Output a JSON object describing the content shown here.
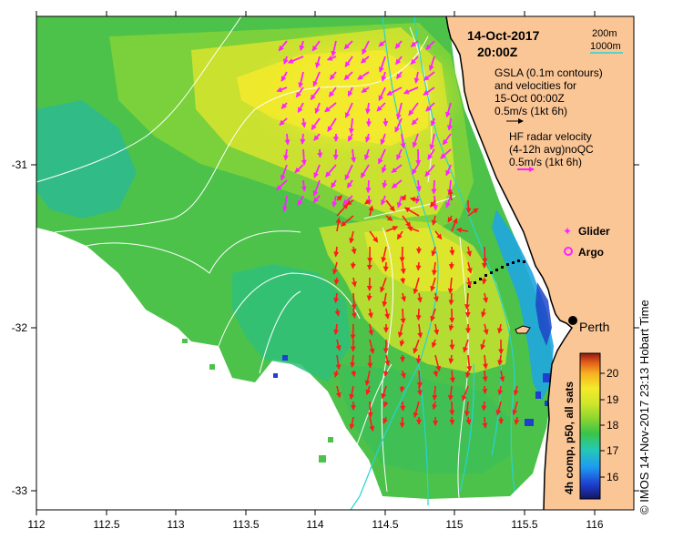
{
  "map": {
    "date": "14-Oct-2017",
    "time": "20:00Z",
    "legend_contours": {
      "line1": "200m",
      "line2": "1000m"
    },
    "legend_gsla": {
      "line1": "GSLA (0.1m contours)",
      "line2": "and velocities for",
      "line3": "15-Oct 00:00Z",
      "scale": "0.5m/s (1kt 6h)"
    },
    "legend_radar": {
      "line1": "HF radar velocity",
      "line2": "(4-12h avg)noQC",
      "line3": "0.5m/s (1kt 6h)"
    },
    "markers": {
      "glider": "Glider",
      "argo": "Argo"
    },
    "city": "Perth",
    "colorbar": {
      "title": "4h comp, p50, all sats",
      "ticks": [
        "16",
        "17",
        "18",
        "19",
        "20"
      ],
      "min": 15.5,
      "max": 20.5
    },
    "credit": "© IMOS 14-Nov-2017 23:13 Hobart Time",
    "x_ticks": [
      "112",
      "112.5",
      "113",
      "113.5",
      "114",
      "114.5",
      "115",
      "115.5",
      "116"
    ],
    "y_ticks": [
      "-31",
      "-32",
      "-33"
    ],
    "extent": {
      "lon_min": 112,
      "lon_max": 116.3,
      "lat_min": -33.12,
      "lat_max": -30.08
    },
    "colors": {
      "land": "#fbc696",
      "coast": "#000000",
      "contour": "#ffffff",
      "bathy": "#26d4d4",
      "radar_vec": "#ff1a1a",
      "gsla_vec": "#ff22ff",
      "glider": "#ff22ff"
    }
  }
}
